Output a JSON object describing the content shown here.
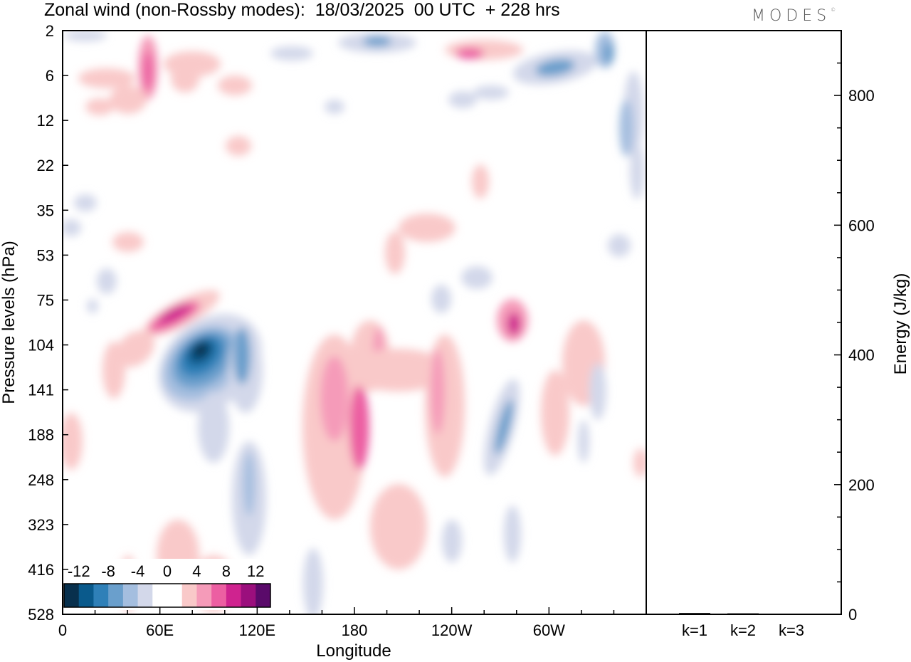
{
  "title": "Zonal wind (non-Rossby modes):  18/03/2025  00 UTC  + 228 hrs",
  "brand": "MODES",
  "chart_data": [
    {
      "type": "heatmap",
      "xlabel": "Longitude",
      "ylabel": "Pressure levels (hPa)",
      "x_ticks": [
        "0",
        "60E",
        "120E",
        "180",
        "120W",
        "60W"
      ],
      "y_ticks": [
        "2",
        "6",
        "12",
        "22",
        "35",
        "53",
        "75",
        "104",
        "141",
        "188",
        "248",
        "323",
        "416",
        "528"
      ],
      "colorbar": {
        "labels": [
          "-12",
          "-8",
          "-4",
          "0",
          "4",
          "8",
          "12"
        ],
        "colors": [
          "#08304d",
          "#0a5a8c",
          "#2f80b8",
          "#6a9fcc",
          "#a4bedf",
          "#d3d8ea",
          "#ffffff",
          "#ffffff",
          "#f9c9c9",
          "#f59bb9",
          "#ec5fa2",
          "#cf238f",
          "#9b0f7d",
          "#5a0a6a"
        ]
      },
      "features": [
        {
          "name": "negative jet core",
          "lon": 78,
          "level": 125,
          "value": -14
        },
        {
          "name": "positive band",
          "lon": 65,
          "level": 88,
          "value": 7
        },
        {
          "name": "stratospheric positive",
          "lon": 50,
          "level": 6,
          "value": 6
        },
        {
          "name": "central positive",
          "lon": 165,
          "level": 160,
          "value": 5
        },
        {
          "name": "western-hemisphere positive",
          "lon": 278,
          "level": 95,
          "value": 8
        },
        {
          "name": "upper negative",
          "lon": 300,
          "level": 5,
          "value": -5
        },
        {
          "name": "lower negative",
          "lon": 270,
          "level": 200,
          "value": -5
        }
      ]
    },
    {
      "type": "bar",
      "ylabel": "Energy (J/kg)",
      "categories": [
        "k=1",
        "k=2",
        "k=3"
      ],
      "values": [
        2,
        1.5,
        1
      ],
      "ylim": [
        0,
        900
      ],
      "y_ticks": [
        "0",
        "200",
        "400",
        "600",
        "800"
      ]
    }
  ]
}
